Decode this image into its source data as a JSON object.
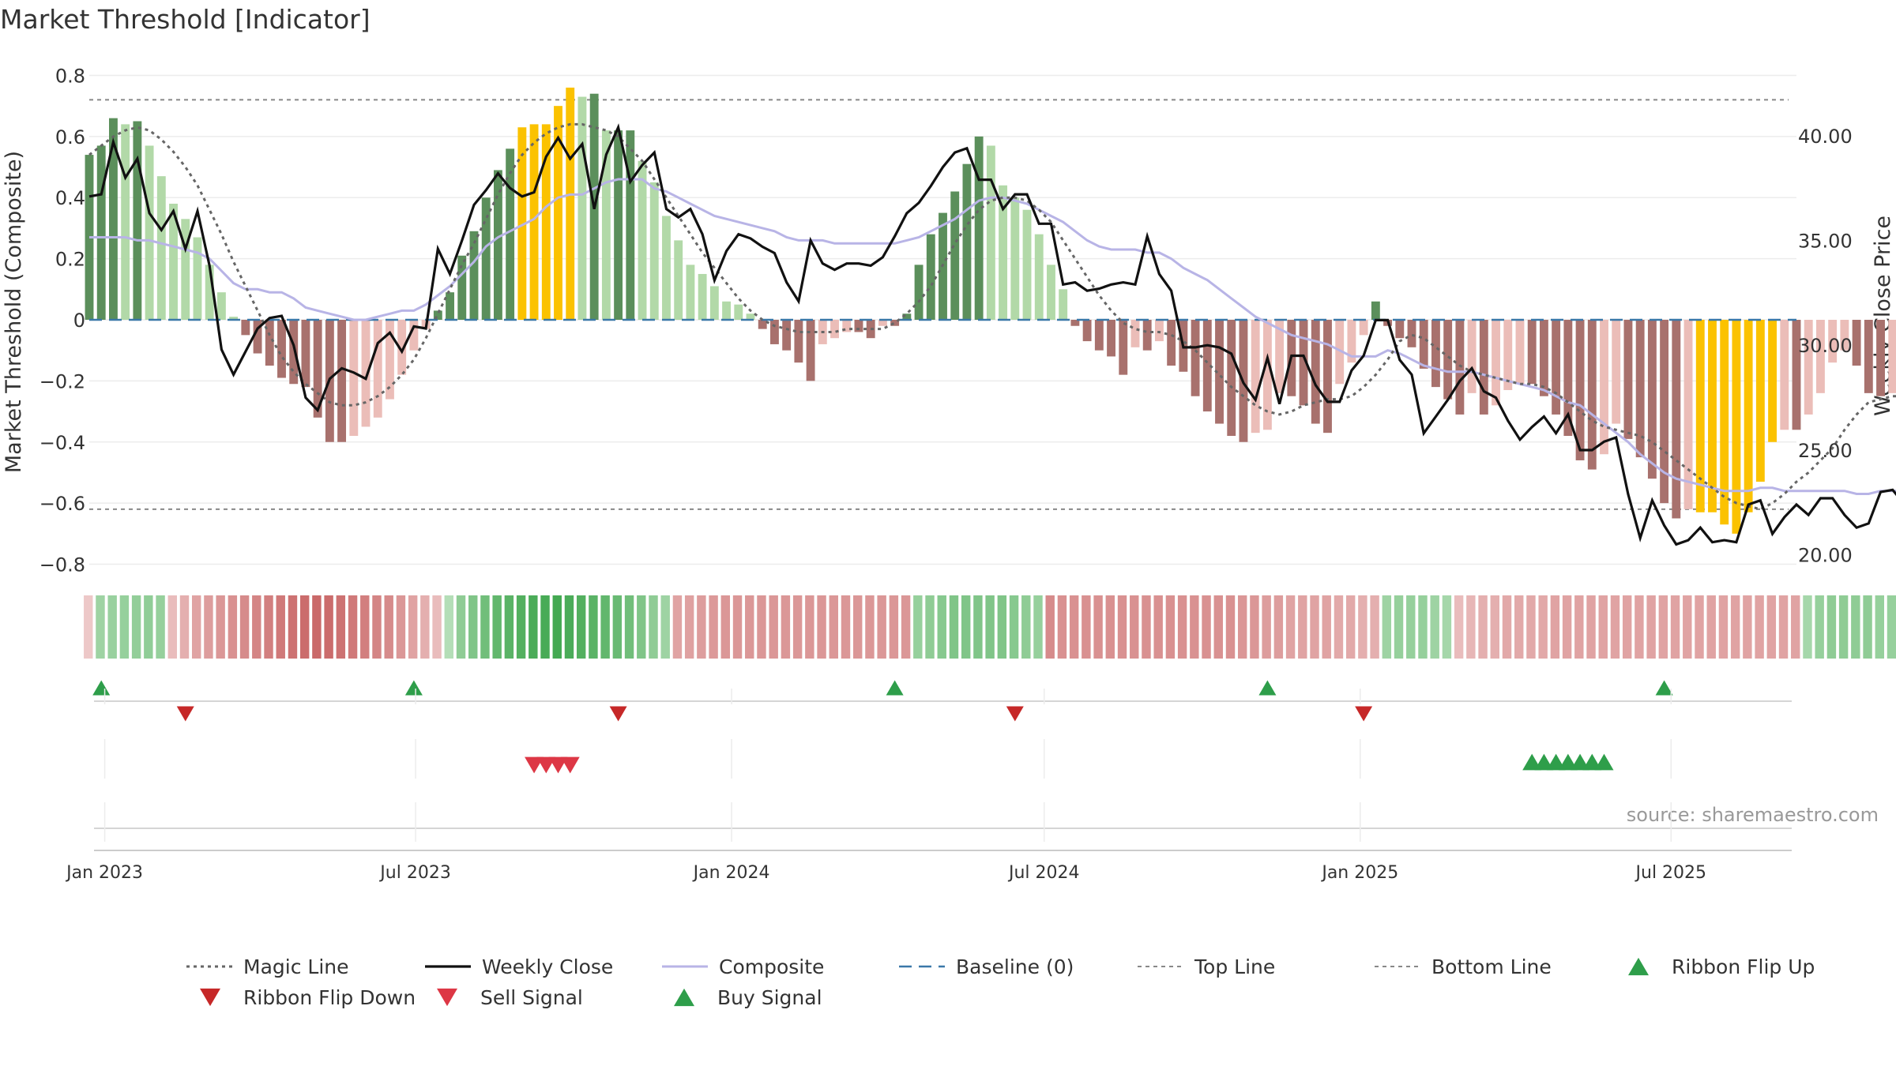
{
  "title": "Market Threshold [Indicator]",
  "source": "source: sharemaestro.com",
  "colors": {
    "gridline": "#ececec",
    "text": "#333333",
    "bar_up_strong": "#5b8f5b",
    "bar_up_weak": "#b2d9a8",
    "bar_down_strong": "#a8716d",
    "bar_down_weak": "#ebbdb8",
    "bar_extreme": "#fbc200",
    "magic": "#666666",
    "close": "#111111",
    "composite": "#b8b4e6",
    "baseline": "#3a78a8",
    "threshold": "#888888",
    "flip_up": "#2e9e4a",
    "flip_down": "#c62828",
    "sell": "#dd3745",
    "buy": "#2e9e4a"
  },
  "chart_data": {
    "type": "bar",
    "title": "Market Threshold [Indicator]",
    "ylabel_left": "Market Threshold (Composite)",
    "ylabel_right": "Weekly Close Price",
    "ylim_left": [
      -0.84,
      0.84
    ],
    "ylim_right": [
      18.97,
      43.46
    ],
    "yticks_left": [
      0.8,
      0.6,
      0.4,
      0.2,
      0,
      -0.2,
      -0.4,
      -0.6,
      -0.8
    ],
    "ytick_labels_left": [
      "0.8",
      "0.6",
      "0.4",
      "0.2",
      "0",
      "−0.2",
      "−0.4",
      "−0.6",
      "−0.8"
    ],
    "yticks_right": [
      40,
      35,
      30,
      25,
      20
    ],
    "ytick_labels_right": [
      "40.00",
      "35.00",
      "30.00",
      "25.00",
      "20.00"
    ],
    "x_start": "2022-12-23",
    "x_end": "2025-09-12",
    "xticks": [
      "2023-01-01",
      "2023-07-01",
      "2024-01-01",
      "2024-07-01",
      "2025-01-01",
      "2025-07-01"
    ],
    "xtick_labels": [
      "Jan 2023",
      "Jul 2023",
      "Jan 2024",
      "Jul 2024",
      "Jan 2025",
      "Jul 2025"
    ],
    "top_line": 0.72,
    "bottom_line": -0.62,
    "grid": true,
    "legend_position": "bottom",
    "composite_values": [
      0.54,
      0.57,
      0.66,
      0.64,
      0.65,
      0.57,
      0.47,
      0.38,
      0.33,
      0.27,
      0.18,
      0.09,
      0.01,
      -0.05,
      -0.11,
      -0.15,
      -0.19,
      -0.21,
      -0.22,
      -0.32,
      -0.4,
      -0.4,
      -0.38,
      -0.35,
      -0.32,
      -0.26,
      -0.18,
      -0.1,
      -0.03,
      0.03,
      0.09,
      0.21,
      0.29,
      0.4,
      0.49,
      0.56,
      0.63,
      0.64,
      0.64,
      0.7,
      0.76,
      0.73,
      0.74,
      0.62,
      0.62,
      0.62,
      0.52,
      0.45,
      0.34,
      0.26,
      0.18,
      0.15,
      0.11,
      0.06,
      0.05,
      0.02,
      -0.03,
      -0.08,
      -0.1,
      -0.14,
      -0.2,
      -0.08,
      -0.06,
      -0.04,
      -0.04,
      -0.06,
      -0.02,
      -0.02,
      0.02,
      0.18,
      0.28,
      0.35,
      0.42,
      0.51,
      0.6,
      0.57,
      0.44,
      0.4,
      0.36,
      0.28,
      0.18,
      0.1,
      -0.02,
      -0.07,
      -0.1,
      -0.12,
      -0.18,
      -0.09,
      -0.1,
      -0.07,
      -0.15,
      -0.17,
      -0.25,
      -0.3,
      -0.34,
      -0.38,
      -0.4,
      -0.37,
      -0.36,
      -0.24,
      -0.25,
      -0.28,
      -0.34,
      -0.37,
      -0.21,
      -0.14,
      -0.05,
      0.06,
      -0.02,
      -0.06,
      -0.09,
      -0.16,
      -0.22,
      -0.26,
      -0.31,
      -0.24,
      -0.31,
      -0.28,
      -0.23,
      -0.21,
      -0.21,
      -0.25,
      -0.31,
      -0.38,
      -0.46,
      -0.49,
      -0.44,
      -0.34,
      -0.39,
      -0.45,
      -0.52,
      -0.6,
      -0.65,
      -0.62,
      -0.63,
      -0.63,
      -0.67,
      -0.7,
      -0.63,
      -0.53,
      -0.4,
      -0.36,
      -0.36,
      -0.31,
      -0.24,
      -0.14,
      -0.1,
      -0.15,
      -0.24,
      -0.25,
      -0.24,
      -0.23,
      -0.28,
      -0.27,
      -0.25
    ],
    "extreme_weeks": [
      36,
      37,
      38,
      39,
      40,
      134,
      135,
      136,
      137,
      138,
      139,
      140
    ],
    "weekly_close": [
      37.1,
      37.2,
      39.7,
      38.0,
      38.9,
      36.3,
      35.5,
      36.4,
      34.6,
      36.4,
      33.8,
      29.8,
      28.6,
      29.7,
      30.8,
      31.3,
      31.4,
      30.0,
      27.5,
      26.9,
      28.4,
      28.9,
      28.7,
      28.4,
      30.1,
      30.6,
      29.7,
      30.9,
      30.8,
      34.6,
      33.4,
      35.0,
      36.7,
      37.4,
      38.2,
      37.5,
      37.1,
      37.3,
      39.0,
      39.9,
      38.9,
      39.6,
      36.5,
      39.1,
      40.4,
      37.8,
      38.6,
      39.2,
      36.5,
      36.1,
      36.5,
      35.3,
      33.1,
      34.5,
      35.3,
      35.1,
      34.7,
      34.4,
      33.0,
      32.1,
      35.0,
      33.9,
      33.6,
      33.9,
      33.9,
      33.8,
      34.2,
      35.2,
      36.3,
      36.8,
      37.6,
      38.5,
      39.2,
      39.4,
      37.9,
      37.9,
      36.5,
      37.2,
      37.2,
      35.8,
      35.8,
      32.9,
      33.0,
      32.6,
      32.7,
      32.9,
      33.0,
      32.9,
      35.2,
      33.4,
      32.6,
      29.9,
      29.9,
      30.0,
      29.9,
      29.6,
      28.2,
      27.4,
      29.4,
      27.2,
      29.5,
      29.5,
      28.1,
      27.3,
      27.3,
      28.8,
      29.5,
      31.2,
      31.2,
      29.3,
      28.6,
      25.8,
      26.6,
      27.4,
      28.3,
      28.9,
      27.8,
      27.5,
      26.4,
      25.5,
      26.1,
      26.6,
      25.8,
      26.7,
      25.0,
      25.0,
      25.4,
      25.6,
      22.9,
      20.8,
      22.6,
      21.4,
      20.5,
      20.7,
      21.3,
      20.6,
      20.7,
      20.6,
      22.4,
      22.6,
      21.0,
      21.8,
      22.4,
      21.9,
      22.7,
      22.7,
      21.9,
      21.3,
      21.5,
      23.0,
      23.1,
      22.4,
      22.5,
      22.8
    ],
    "magic_line": [
      0.54,
      0.57,
      0.6,
      0.62,
      0.63,
      0.62,
      0.59,
      0.55,
      0.5,
      0.44,
      0.36,
      0.28,
      0.19,
      0.11,
      0.03,
      -0.05,
      -0.12,
      -0.17,
      -0.21,
      -0.24,
      -0.27,
      -0.28,
      -0.28,
      -0.27,
      -0.25,
      -0.22,
      -0.18,
      -0.13,
      -0.06,
      0.02,
      0.1,
      0.18,
      0.25,
      0.33,
      0.41,
      0.48,
      0.54,
      0.58,
      0.61,
      0.63,
      0.64,
      0.64,
      0.63,
      0.62,
      0.6,
      0.56,
      0.52,
      0.46,
      0.4,
      0.34,
      0.28,
      0.22,
      0.17,
      0.12,
      0.07,
      0.03,
      0.0,
      -0.02,
      -0.03,
      -0.04,
      -0.04,
      -0.04,
      -0.04,
      -0.03,
      -0.03,
      -0.03,
      -0.03,
      -0.01,
      0.02,
      0.06,
      0.11,
      0.18,
      0.25,
      0.31,
      0.36,
      0.39,
      0.4,
      0.4,
      0.39,
      0.36,
      0.32,
      0.26,
      0.2,
      0.14,
      0.08,
      0.03,
      -0.01,
      -0.03,
      -0.04,
      -0.04,
      -0.05,
      -0.07,
      -0.1,
      -0.14,
      -0.18,
      -0.22,
      -0.25,
      -0.28,
      -0.3,
      -0.31,
      -0.3,
      -0.28,
      -0.27,
      -0.26,
      -0.26,
      -0.25,
      -0.22,
      -0.18,
      -0.13,
      -0.07,
      -0.05,
      -0.06,
      -0.09,
      -0.12,
      -0.15,
      -0.17,
      -0.18,
      -0.19,
      -0.2,
      -0.21,
      -0.21,
      -0.22,
      -0.24,
      -0.27,
      -0.3,
      -0.33,
      -0.35,
      -0.36,
      -0.37,
      -0.38,
      -0.4,
      -0.43,
      -0.46,
      -0.49,
      -0.52,
      -0.55,
      -0.58,
      -0.6,
      -0.61,
      -0.62,
      -0.6,
      -0.57,
      -0.53,
      -0.5,
      -0.46,
      -0.42,
      -0.36,
      -0.31,
      -0.27,
      -0.26,
      -0.25,
      -0.25,
      -0.25,
      -0.26,
      -0.26,
      -0.26
    ],
    "composite_line": [
      0.27,
      0.27,
      0.27,
      0.27,
      0.26,
      0.26,
      0.25,
      0.24,
      0.23,
      0.22,
      0.2,
      0.16,
      0.12,
      0.1,
      0.1,
      0.09,
      0.09,
      0.07,
      0.04,
      0.03,
      0.02,
      0.01,
      0.0,
      0.0,
      0.01,
      0.02,
      0.03,
      0.03,
      0.05,
      0.08,
      0.11,
      0.15,
      0.19,
      0.24,
      0.27,
      0.29,
      0.31,
      0.33,
      0.37,
      0.4,
      0.41,
      0.41,
      0.43,
      0.45,
      0.46,
      0.46,
      0.46,
      0.43,
      0.42,
      0.4,
      0.38,
      0.36,
      0.34,
      0.33,
      0.32,
      0.31,
      0.3,
      0.29,
      0.27,
      0.26,
      0.26,
      0.26,
      0.25,
      0.25,
      0.25,
      0.25,
      0.25,
      0.25,
      0.26,
      0.27,
      0.29,
      0.31,
      0.33,
      0.36,
      0.39,
      0.4,
      0.4,
      0.39,
      0.38,
      0.36,
      0.34,
      0.32,
      0.29,
      0.26,
      0.24,
      0.23,
      0.23,
      0.23,
      0.22,
      0.22,
      0.2,
      0.17,
      0.15,
      0.13,
      0.1,
      0.07,
      0.04,
      0.01,
      -0.01,
      -0.03,
      -0.05,
      -0.06,
      -0.07,
      -0.08,
      -0.1,
      -0.12,
      -0.12,
      -0.12,
      -0.1,
      -0.11,
      -0.13,
      -0.15,
      -0.16,
      -0.17,
      -0.17,
      -0.17,
      -0.18,
      -0.19,
      -0.2,
      -0.21,
      -0.22,
      -0.23,
      -0.25,
      -0.27,
      -0.28,
      -0.31,
      -0.34,
      -0.37,
      -0.4,
      -0.44,
      -0.47,
      -0.5,
      -0.52,
      -0.53,
      -0.54,
      -0.55,
      -0.56,
      -0.56,
      -0.56,
      -0.55,
      -0.55,
      -0.56,
      -0.56,
      -0.56,
      -0.56,
      -0.56,
      -0.56,
      -0.57,
      -0.57,
      -0.56,
      -0.56,
      -0.56,
      -0.56,
      -0.56
    ],
    "ribbon": [
      -0.1,
      0.35,
      0.38,
      0.4,
      0.42,
      0.44,
      0.4,
      -0.2,
      -0.3,
      -0.4,
      -0.45,
      -0.5,
      -0.55,
      -0.6,
      -0.65,
      -0.7,
      -0.75,
      -0.8,
      -0.85,
      -0.88,
      -0.85,
      -0.8,
      -0.75,
      -0.7,
      -0.65,
      -0.6,
      -0.5,
      -0.4,
      -0.3,
      -0.2,
      0.2,
      0.45,
      0.55,
      0.65,
      0.75,
      0.8,
      0.85,
      0.9,
      0.92,
      0.95,
      0.9,
      0.85,
      0.8,
      0.75,
      0.7,
      0.65,
      0.55,
      0.45,
      0.35,
      -0.4,
      -0.42,
      -0.45,
      -0.48,
      -0.5,
      -0.5,
      -0.5,
      -0.5,
      -0.5,
      -0.5,
      -0.5,
      -0.5,
      -0.5,
      -0.5,
      -0.5,
      -0.5,
      -0.5,
      -0.5,
      -0.5,
      -0.5,
      0.4,
      0.45,
      0.5,
      0.55,
      0.55,
      0.55,
      0.55,
      0.55,
      0.5,
      0.45,
      0.4,
      -0.6,
      -0.55,
      -0.55,
      -0.55,
      -0.55,
      -0.55,
      -0.55,
      -0.55,
      -0.55,
      -0.55,
      -0.55,
      -0.55,
      -0.55,
      -0.55,
      -0.55,
      -0.55,
      -0.5,
      -0.5,
      -0.45,
      -0.45,
      -0.4,
      -0.4,
      -0.4,
      -0.4,
      -0.35,
      -0.35,
      -0.3,
      -0.3,
      0.35,
      0.4,
      0.4,
      0.4,
      0.35,
      0.3,
      -0.2,
      -0.25,
      -0.3,
      -0.3,
      -0.35,
      -0.35,
      -0.35,
      -0.35,
      -0.4,
      -0.4,
      -0.4,
      -0.4,
      -0.4,
      -0.4,
      -0.4,
      -0.4,
      -0.4,
      -0.4,
      -0.4,
      -0.4,
      -0.4,
      -0.4,
      -0.4,
      -0.4,
      -0.4,
      -0.4,
      -0.4,
      -0.4,
      -0.4,
      0.3,
      0.4,
      0.45,
      0.45,
      0.45,
      0.45,
      0.4,
      0.4,
      0.35,
      0.35,
      0.35,
      0.3,
      0.3
    ],
    "ribbon_flip_up": [
      "2022-12-30",
      "2023-06-30",
      "2024-04-05",
      "2024-11-08",
      "2025-06-27"
    ],
    "ribbon_flip_down": [
      "2023-02-17",
      "2023-10-27",
      "2024-06-14",
      "2025-01-03"
    ],
    "sell_signal": [
      "2023-09-08",
      "2023-09-15",
      "2023-09-22",
      "2023-09-29"
    ],
    "buy_signal": [
      "2025-04-11",
      "2025-04-18",
      "2025-04-25",
      "2025-05-02",
      "2025-05-09",
      "2025-05-16",
      "2025-05-23"
    ],
    "legend": [
      "Magic Line",
      "Weekly Close",
      "Composite",
      "Baseline (0)",
      "Top Line",
      "Bottom Line",
      "Ribbon Flip Up",
      "Ribbon Flip Down",
      "Sell Signal",
      "Buy Signal"
    ]
  }
}
